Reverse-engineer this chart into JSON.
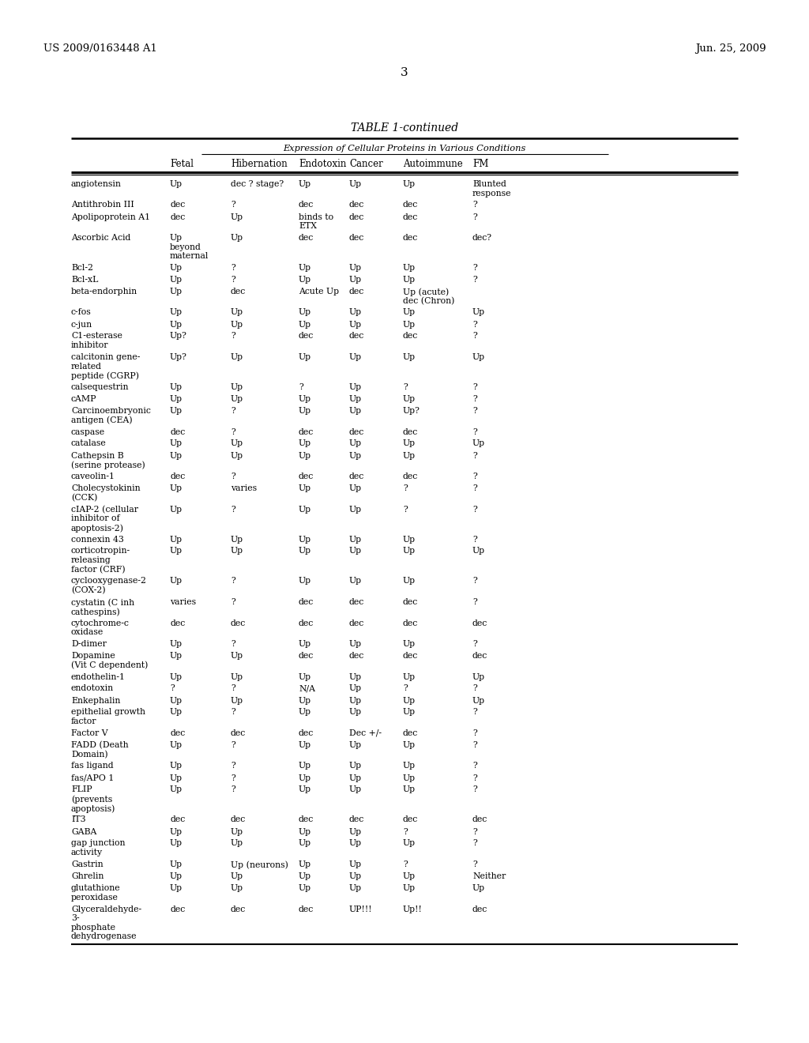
{
  "patent_number": "US 2009/0163448 A1",
  "patent_date": "Jun. 25, 2009",
  "page_number": "3",
  "table_title": "TABLE 1-continued",
  "table_subtitle": "Expression of Cellular Proteins in Various Conditions",
  "header_labels": [
    "Fetal",
    "Hibernation",
    "Endotoxin",
    "Cancer",
    "Autoimmune",
    "FM"
  ],
  "rows": [
    [
      "angiotensin",
      "Up",
      "dec ? stage?",
      "Up",
      "Up",
      "Up",
      "Blunted\nresponse"
    ],
    [
      "Antithrobin III",
      "dec",
      "?",
      "dec",
      "dec",
      "dec",
      "?"
    ],
    [
      "Apolipoprotein A1",
      "dec",
      "Up",
      "binds to\nETX",
      "dec",
      "dec",
      "?"
    ],
    [
      "Ascorbic Acid",
      "Up\nbeyond\nmaternal",
      "Up",
      "dec",
      "dec",
      "dec",
      "dec?"
    ],
    [
      "Bcl-2",
      "Up",
      "?",
      "Up",
      "Up",
      "Up",
      "?"
    ],
    [
      "Bcl-xL",
      "Up",
      "?",
      "Up",
      "Up",
      "Up",
      "?"
    ],
    [
      "beta-endorphin",
      "Up",
      "dec",
      "Acute Up",
      "dec",
      "Up (acute)\ndec (Chron)",
      ""
    ],
    [
      "c-fos",
      "Up",
      "Up",
      "Up",
      "Up",
      "Up",
      "Up"
    ],
    [
      "c-jun",
      "Up",
      "Up",
      "Up",
      "Up",
      "Up",
      "?"
    ],
    [
      "C1-esterase\ninhibitor",
      "Up?",
      "?",
      "dec",
      "dec",
      "dec",
      "?"
    ],
    [
      "calcitonin gene-\nrelated\npeptide (CGRP)",
      "Up?",
      "Up",
      "Up",
      "Up",
      "Up",
      "Up"
    ],
    [
      "calsequestrin",
      "Up",
      "Up",
      "?",
      "Up",
      "?",
      "?"
    ],
    [
      "cAMP",
      "Up",
      "Up",
      "Up",
      "Up",
      "Up",
      "?"
    ],
    [
      "Carcinoembryonic\nantigen (CEA)",
      "Up",
      "?",
      "Up",
      "Up",
      "Up?",
      "?"
    ],
    [
      "caspase",
      "dec",
      "?",
      "dec",
      "dec",
      "dec",
      "?"
    ],
    [
      "catalase",
      "Up",
      "Up",
      "Up",
      "Up",
      "Up",
      "Up"
    ],
    [
      "Cathepsin B\n(serine protease)",
      "Up",
      "Up",
      "Up",
      "Up",
      "Up",
      "?"
    ],
    [
      "caveolin-1",
      "dec",
      "?",
      "dec",
      "dec",
      "dec",
      "?"
    ],
    [
      "Cholecystokinin\n(CCK)",
      "Up",
      "varies",
      "Up",
      "Up",
      "?",
      "?"
    ],
    [
      "cIAP-2 (cellular\ninhibitor of\napoptosis-2)",
      "Up",
      "?",
      "Up",
      "Up",
      "?",
      "?"
    ],
    [
      "connexin 43",
      "Up",
      "Up",
      "Up",
      "Up",
      "Up",
      "?"
    ],
    [
      "corticotropin-\nreleasing\nfactor (CRF)",
      "Up",
      "Up",
      "Up",
      "Up",
      "Up",
      "Up"
    ],
    [
      "cyclooxygenase-2\n(COX-2)",
      "Up",
      "?",
      "Up",
      "Up",
      "Up",
      "?"
    ],
    [
      "cystatin (C inh\ncathespins)",
      "varies",
      "?",
      "dec",
      "dec",
      "dec",
      "?"
    ],
    [
      "cytochrome-c\noxidase",
      "dec",
      "dec",
      "dec",
      "dec",
      "dec",
      "dec"
    ],
    [
      "D-dimer",
      "Up",
      "?",
      "Up",
      "Up",
      "Up",
      "?"
    ],
    [
      "Dopamine\n(Vit C dependent)",
      "Up",
      "Up",
      "dec",
      "dec",
      "dec",
      "dec"
    ],
    [
      "endothelin-1",
      "Up",
      "Up",
      "Up",
      "Up",
      "Up",
      "Up"
    ],
    [
      "endotoxin",
      "?",
      "?",
      "N/A",
      "Up",
      "?",
      "?"
    ],
    [
      "Enkephalin",
      "Up",
      "Up",
      "Up",
      "Up",
      "Up",
      "Up"
    ],
    [
      "epithelial growth\nfactor",
      "Up",
      "?",
      "Up",
      "Up",
      "Up",
      "?"
    ],
    [
      "Factor V",
      "dec",
      "dec",
      "dec",
      "Dec +/-",
      "dec",
      "?"
    ],
    [
      "FADD (Death\nDomain)",
      "Up",
      "?",
      "Up",
      "Up",
      "Up",
      "?"
    ],
    [
      "fas ligand",
      "Up",
      "?",
      "Up",
      "Up",
      "Up",
      "?"
    ],
    [
      "fas/APO 1",
      "Up",
      "?",
      "Up",
      "Up",
      "Up",
      "?"
    ],
    [
      "FLIP\n(prevents\napoptosis)",
      "Up",
      "?",
      "Up",
      "Up",
      "Up",
      "?"
    ],
    [
      "IT3",
      "dec",
      "dec",
      "dec",
      "dec",
      "dec",
      "dec"
    ],
    [
      "GABA",
      "Up",
      "Up",
      "Up",
      "Up",
      "?",
      "?"
    ],
    [
      "gap junction\nactivity",
      "Up",
      "Up",
      "Up",
      "Up",
      "Up",
      "?"
    ],
    [
      "Gastrin",
      "Up",
      "Up (neurons)",
      "Up",
      "Up",
      "?",
      "?"
    ],
    [
      "Ghrelin",
      "Up",
      "Up",
      "Up",
      "Up",
      "Up",
      "Neither"
    ],
    [
      "glutathione\nperoxidase",
      "Up",
      "Up",
      "Up",
      "Up",
      "Up",
      "Up"
    ],
    [
      "Glyceraldehyde-\n3-\nphosphate\ndehydrogenase",
      "dec",
      "dec",
      "dec",
      "UP!!!",
      "Up!!",
      "dec"
    ]
  ],
  "bg_color": "#ffffff",
  "text_color": "#000000",
  "fontsize_header": 8.5,
  "fontsize_body": 7.8,
  "fontsize_patent": 9.5,
  "fontsize_page": 11,
  "fontsize_title": 10
}
